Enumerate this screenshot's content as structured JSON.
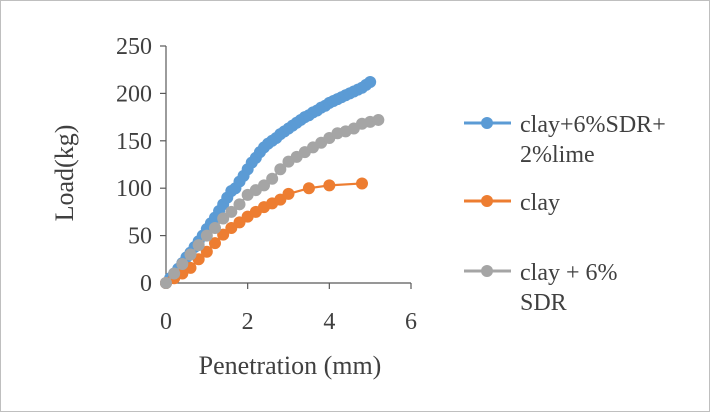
{
  "chart_data": {
    "type": "scatter",
    "xlabel": "Penetration (mm)",
    "ylabel": "Load(kg)",
    "xlim": [
      0,
      6
    ],
    "ylim": [
      0,
      250
    ],
    "xticks": [
      "0",
      "2",
      "4",
      "6"
    ],
    "yticks": [
      "0",
      "50",
      "100",
      "150",
      "200",
      "250"
    ],
    "grid": false,
    "legend": "right",
    "series": [
      {
        "name": "clay+6%SDR+ 2%lime",
        "legend_lines": [
          "clay+6%SDR+",
          "2%lime"
        ],
        "color": "#5b9bd5",
        "x": [
          0,
          0.1,
          0.2,
          0.3,
          0.4,
          0.5,
          0.6,
          0.7,
          0.8,
          0.9,
          1.0,
          1.1,
          1.2,
          1.3,
          1.4,
          1.5,
          1.6,
          1.7,
          1.8,
          1.9,
          2.0,
          2.1,
          2.2,
          2.3,
          2.4,
          2.5,
          2.6,
          2.7,
          2.8,
          2.9,
          3.0,
          3.1,
          3.2,
          3.3,
          3.4,
          3.5,
          3.6,
          3.7,
          3.8,
          3.9,
          4.0,
          4.1,
          4.2,
          4.3,
          4.4,
          4.5,
          4.6,
          4.7,
          4.8,
          4.9,
          5.0
        ],
        "y": [
          0,
          5,
          10,
          15,
          21,
          27,
          32,
          38,
          44,
          50,
          57,
          63,
          69,
          76,
          83,
          90,
          97,
          100,
          107,
          113,
          120,
          127,
          132,
          138,
          143,
          147,
          150,
          153,
          157,
          160,
          163,
          166,
          169,
          172,
          175,
          177,
          180,
          182,
          185,
          187,
          190,
          192,
          194,
          196,
          198,
          200,
          202,
          204,
          206,
          209,
          212
        ]
      },
      {
        "name": "clay",
        "legend_lines": [
          "clay"
        ],
        "color": "#ed7d31",
        "x": [
          0,
          0.2,
          0.4,
          0.6,
          0.8,
          1.0,
          1.2,
          1.4,
          1.6,
          1.8,
          2.0,
          2.2,
          2.4,
          2.6,
          2.8,
          3.0,
          3.5,
          4.0,
          4.8
        ],
        "y": [
          0,
          5,
          10,
          16,
          25,
          33,
          42,
          51,
          58,
          64,
          70,
          75,
          80,
          84,
          88,
          94,
          100,
          103,
          105
        ]
      },
      {
        "name": "clay + 6% SDR",
        "legend_lines": [
          "clay + 6%",
          "SDR"
        ],
        "color": "#a5a5a5",
        "x": [
          0,
          0.2,
          0.4,
          0.6,
          0.8,
          1.0,
          1.2,
          1.4,
          1.6,
          1.8,
          2.0,
          2.2,
          2.4,
          2.6,
          2.8,
          3.0,
          3.2,
          3.4,
          3.6,
          3.8,
          4.0,
          4.2,
          4.4,
          4.6,
          4.8,
          5.0,
          5.2
        ],
        "y": [
          0,
          10,
          20,
          30,
          40,
          50,
          58,
          68,
          75,
          83,
          93,
          98,
          103,
          110,
          120,
          128,
          133,
          138,
          143,
          148,
          153,
          158,
          160,
          163,
          168,
          170,
          172
        ]
      }
    ]
  }
}
